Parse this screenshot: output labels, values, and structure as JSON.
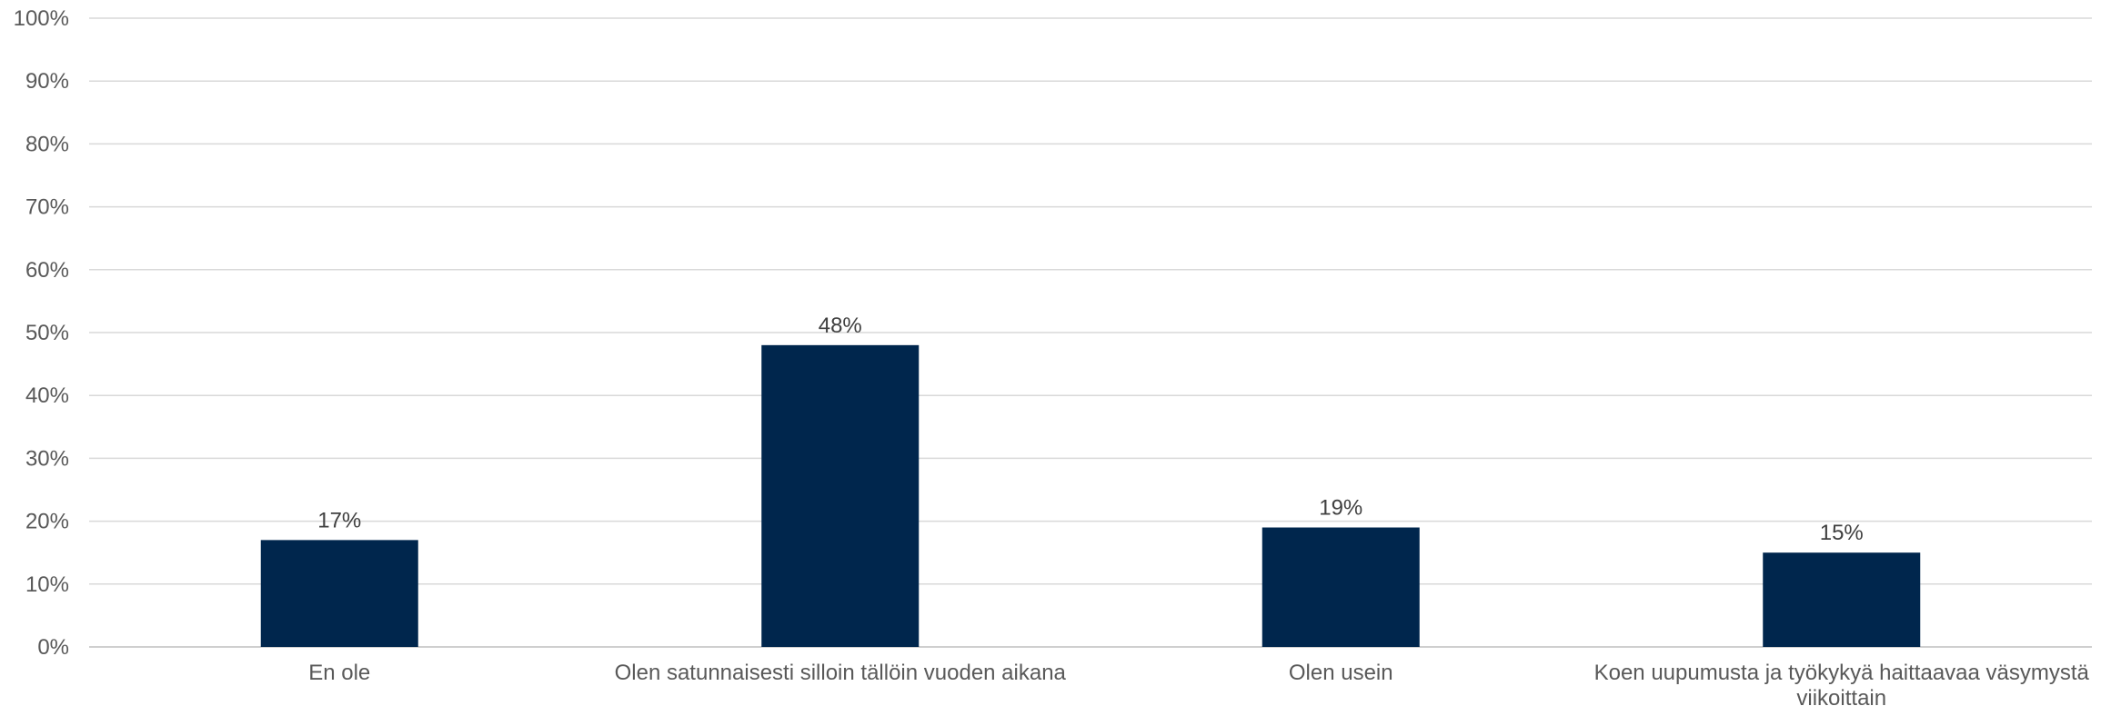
{
  "chart_data": {
    "type": "bar",
    "categories": [
      [
        "En ole"
      ],
      [
        "Olen satunnaisesti silloin tällöin vuoden aikana"
      ],
      [
        "Olen usein"
      ],
      [
        "Koen uupumusta ja työkykyä haittaavaa väsymystä",
        "viikoittain"
      ]
    ],
    "values": [
      17,
      48,
      19,
      15
    ],
    "data_labels": [
      "17%",
      "48%",
      "19%",
      "15%"
    ],
    "y_ticks": [
      "0%",
      "10%",
      "20%",
      "30%",
      "40%",
      "50%",
      "60%",
      "70%",
      "80%",
      "90%",
      "100%"
    ],
    "ylim": [
      0,
      100
    ],
    "grid": true,
    "legend": "none",
    "title": "",
    "xlabel": "",
    "ylabel": "",
    "colors": {
      "bar": "#00264D",
      "grid": "#D9D9D9",
      "axis": "#BFBFBF"
    }
  }
}
